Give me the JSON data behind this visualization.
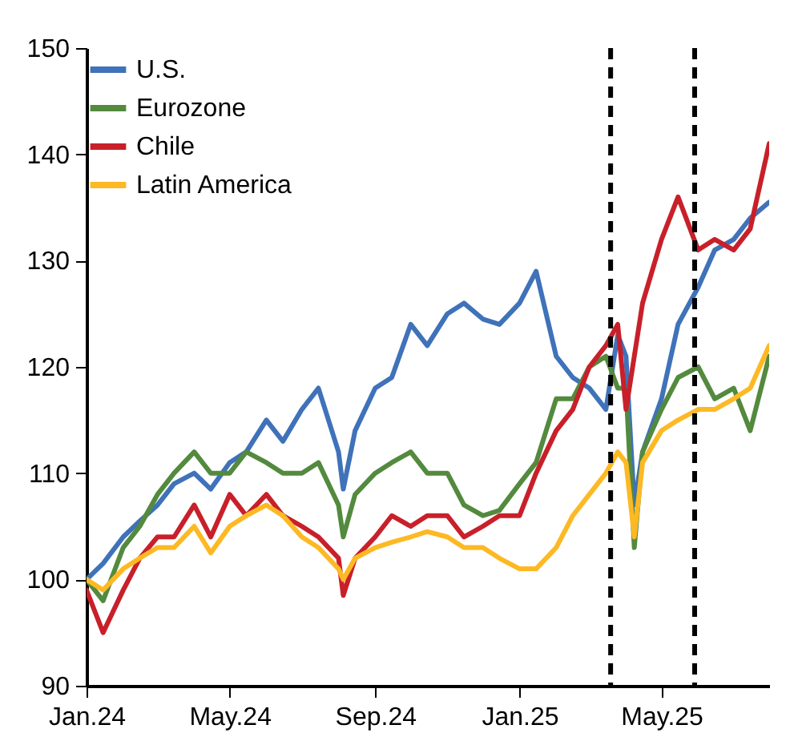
{
  "chart_data": {
    "type": "line",
    "x": [
      "2024-01-01",
      "2024-01-15",
      "2024-02-01",
      "2024-02-15",
      "2024-03-01",
      "2024-03-15",
      "2024-04-01",
      "2024-04-15",
      "2024-05-01",
      "2024-05-15",
      "2024-06-01",
      "2024-06-15",
      "2024-07-01",
      "2024-07-15",
      "2024-08-01",
      "2024-08-05",
      "2024-08-15",
      "2024-09-01",
      "2024-09-15",
      "2024-10-01",
      "2024-10-15",
      "2024-11-01",
      "2024-11-15",
      "2024-12-01",
      "2024-12-15",
      "2025-01-01",
      "2025-01-15",
      "2025-02-01",
      "2025-02-15",
      "2025-03-01",
      "2025-03-15",
      "2025-03-25",
      "2025-04-01",
      "2025-04-08",
      "2025-04-15",
      "2025-05-01",
      "2025-05-15",
      "2025-06-01",
      "2025-06-15",
      "2025-07-01",
      "2025-07-15",
      "2025-07-31"
    ],
    "series": [
      {
        "name": "U.S.",
        "color": "#3f72b9",
        "values": [
          100,
          101.5,
          104,
          105.5,
          107,
          109,
          110,
          108.5,
          111,
          112,
          115,
          113,
          116,
          118,
          112,
          108.5,
          114,
          118,
          119,
          124,
          122,
          125,
          126,
          124.5,
          124,
          126,
          129,
          121,
          119,
          118,
          116,
          123,
          121,
          107,
          112,
          117,
          124,
          127.5,
          131,
          132,
          134,
          135.5
        ]
      },
      {
        "name": "Eurozone",
        "color": "#538a3e",
        "values": [
          100,
          98,
          103,
          105,
          108,
          110,
          112,
          110,
          110,
          112,
          111,
          110,
          110,
          111,
          107,
          104,
          108,
          110,
          111,
          112,
          110,
          110,
          107,
          106,
          106.5,
          109,
          111,
          117,
          117,
          120,
          121,
          118,
          118,
          103,
          112,
          116,
          119,
          120,
          117,
          118,
          114,
          121
        ]
      },
      {
        "name": "Chile",
        "color": "#c8202a",
        "values": [
          99,
          95,
          99,
          102,
          104,
          104,
          107,
          104,
          108,
          106,
          108,
          106,
          105,
          104,
          102,
          98.5,
          102,
          104,
          106,
          105,
          106,
          106,
          104,
          105,
          106,
          106,
          110,
          114,
          116,
          120,
          122,
          124,
          116,
          121,
          126,
          132,
          136,
          131,
          132,
          131,
          133,
          141
        ]
      },
      {
        "name": "Latin America",
        "color": "#fdb924",
        "values": [
          100,
          99,
          101,
          102,
          103,
          103,
          105,
          102.5,
          105,
          106,
          107,
          106,
          104,
          103,
          101,
          100,
          102,
          103,
          103.5,
          104,
          104.5,
          104,
          103,
          103,
          102,
          101,
          101,
          103,
          106,
          108,
          110,
          112,
          111,
          104,
          111,
          114,
          115,
          116,
          116,
          117,
          118,
          122
        ]
      }
    ],
    "xlim": [
      "2024-01-01",
      "2025-07-31"
    ],
    "xticks": [
      {
        "value": "2024-01-01",
        "label": "Jan.24"
      },
      {
        "value": "2024-05-01",
        "label": "May.24"
      },
      {
        "value": "2024-09-01",
        "label": "Sep.24"
      },
      {
        "value": "2025-01-01",
        "label": "Jan.25"
      },
      {
        "value": "2025-05-01",
        "label": "May.25"
      }
    ],
    "ylim": [
      90,
      150
    ],
    "yticks": [
      90,
      100,
      110,
      120,
      130,
      140,
      150
    ],
    "ref_lines": [
      {
        "axis": "x",
        "value": "2025-03-19",
        "color": "#000000",
        "line_style": "dashed"
      },
      {
        "axis": "x",
        "value": "2025-05-29",
        "color": "#000000",
        "line_style": "dashed"
      }
    ],
    "legend": "top left",
    "grid": false,
    "line_style": "solid"
  }
}
